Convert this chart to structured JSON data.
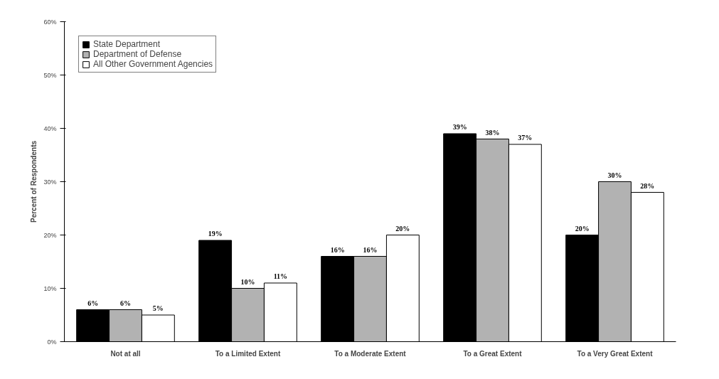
{
  "chart_data": {
    "type": "bar",
    "ylabel": "Percent of Respondents",
    "categories": [
      "Not at all",
      "To a Limited Extent",
      "To a Moderate Extent",
      "To a Great Extent",
      "To a Very Great Extent"
    ],
    "series": [
      {
        "name": "State Department",
        "color": "#000000",
        "values": [
          6,
          19,
          16,
          39,
          20
        ],
        "value_labels": [
          "6%",
          "19%",
          "16%",
          "39%",
          "20%"
        ]
      },
      {
        "name": "Department of Defense",
        "color": "#b2b2b2",
        "values": [
          6,
          10,
          16,
          38,
          30
        ],
        "value_labels": [
          "6%",
          "10%",
          "16%",
          "38%",
          "30%"
        ]
      },
      {
        "name": "All Other Government Agencies",
        "color": "#ffffff",
        "values": [
          5,
          11,
          20,
          37,
          28
        ],
        "value_labels": [
          "5%",
          "11%",
          "20%",
          "37%",
          "28%"
        ]
      }
    ],
    "ylim": [
      0,
      60
    ],
    "yticks": [
      {
        "value": 0,
        "label": "0%"
      },
      {
        "value": 10,
        "label": "10%"
      },
      {
        "value": 20,
        "label": "20%"
      },
      {
        "value": 30,
        "label": "30%"
      },
      {
        "value": 40,
        "label": "40%"
      },
      {
        "value": 50,
        "label": "50%"
      },
      {
        "value": 60,
        "label": "60%"
      }
    ],
    "grid": false,
    "legend": "top left"
  }
}
